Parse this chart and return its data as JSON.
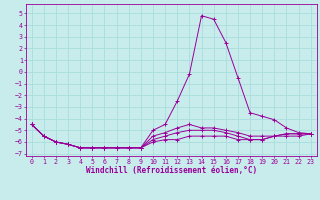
{
  "xlabel": "Windchill (Refroidissement éolien,°C)",
  "xlim": [
    -0.5,
    23.5
  ],
  "ylim": [
    -7.2,
    5.8
  ],
  "xticks": [
    0,
    1,
    2,
    3,
    4,
    5,
    6,
    7,
    8,
    9,
    10,
    11,
    12,
    13,
    14,
    15,
    16,
    17,
    18,
    19,
    20,
    21,
    22,
    23
  ],
  "yticks": [
    -7,
    -6,
    -5,
    -4,
    -3,
    -2,
    -1,
    0,
    1,
    2,
    3,
    4,
    5
  ],
  "bg_color": "#c8ecec",
  "line_color": "#990099",
  "grid_color": "#aadddd",
  "series": [
    {
      "x": [
        0,
        1,
        2,
        3,
        4,
        5,
        6,
        7,
        8,
        9,
        10,
        11,
        12,
        13,
        14,
        15,
        16,
        17,
        18,
        19,
        20,
        21,
        22,
        23
      ],
      "y": [
        -4.5,
        -5.5,
        -6.0,
        -6.2,
        -6.5,
        -6.5,
        -6.5,
        -6.5,
        -6.5,
        -6.5,
        -5.0,
        -4.5,
        -2.5,
        -0.2,
        4.8,
        4.5,
        2.5,
        -0.5,
        -3.5,
        -3.8,
        -4.1,
        -4.8,
        -5.2,
        -5.3
      ]
    },
    {
      "x": [
        0,
        1,
        2,
        3,
        4,
        5,
        6,
        7,
        8,
        9,
        10,
        11,
        12,
        13,
        14,
        15,
        16,
        17,
        18,
        19,
        20,
        21,
        22,
        23
      ],
      "y": [
        -4.5,
        -5.5,
        -6.0,
        -6.2,
        -6.5,
        -6.5,
        -6.5,
        -6.5,
        -6.5,
        -6.5,
        -5.5,
        -5.2,
        -4.8,
        -4.5,
        -4.8,
        -4.8,
        -5.0,
        -5.2,
        -5.5,
        -5.5,
        -5.5,
        -5.5,
        -5.5,
        -5.3
      ]
    },
    {
      "x": [
        0,
        1,
        2,
        3,
        4,
        5,
        6,
        7,
        8,
        9,
        10,
        11,
        12,
        13,
        14,
        15,
        16,
        17,
        18,
        19,
        20,
        21,
        22,
        23
      ],
      "y": [
        -4.5,
        -5.5,
        -6.0,
        -6.2,
        -6.5,
        -6.5,
        -6.5,
        -6.5,
        -6.5,
        -6.5,
        -5.8,
        -5.5,
        -5.2,
        -5.0,
        -5.0,
        -5.0,
        -5.2,
        -5.5,
        -5.8,
        -5.8,
        -5.5,
        -5.3,
        -5.3,
        -5.3
      ]
    },
    {
      "x": [
        0,
        1,
        2,
        3,
        4,
        5,
        6,
        7,
        8,
        9,
        10,
        11,
        12,
        13,
        14,
        15,
        16,
        17,
        18,
        19,
        20,
        21,
        22,
        23
      ],
      "y": [
        -4.5,
        -5.5,
        -6.0,
        -6.2,
        -6.5,
        -6.5,
        -6.5,
        -6.5,
        -6.5,
        -6.5,
        -6.0,
        -5.8,
        -5.8,
        -5.5,
        -5.5,
        -5.5,
        -5.5,
        -5.8,
        -5.8,
        -5.8,
        -5.5,
        -5.3,
        -5.3,
        -5.3
      ]
    }
  ],
  "font_size": 5.0,
  "tick_font_size": 4.8,
  "xlabel_fontsize": 5.5
}
